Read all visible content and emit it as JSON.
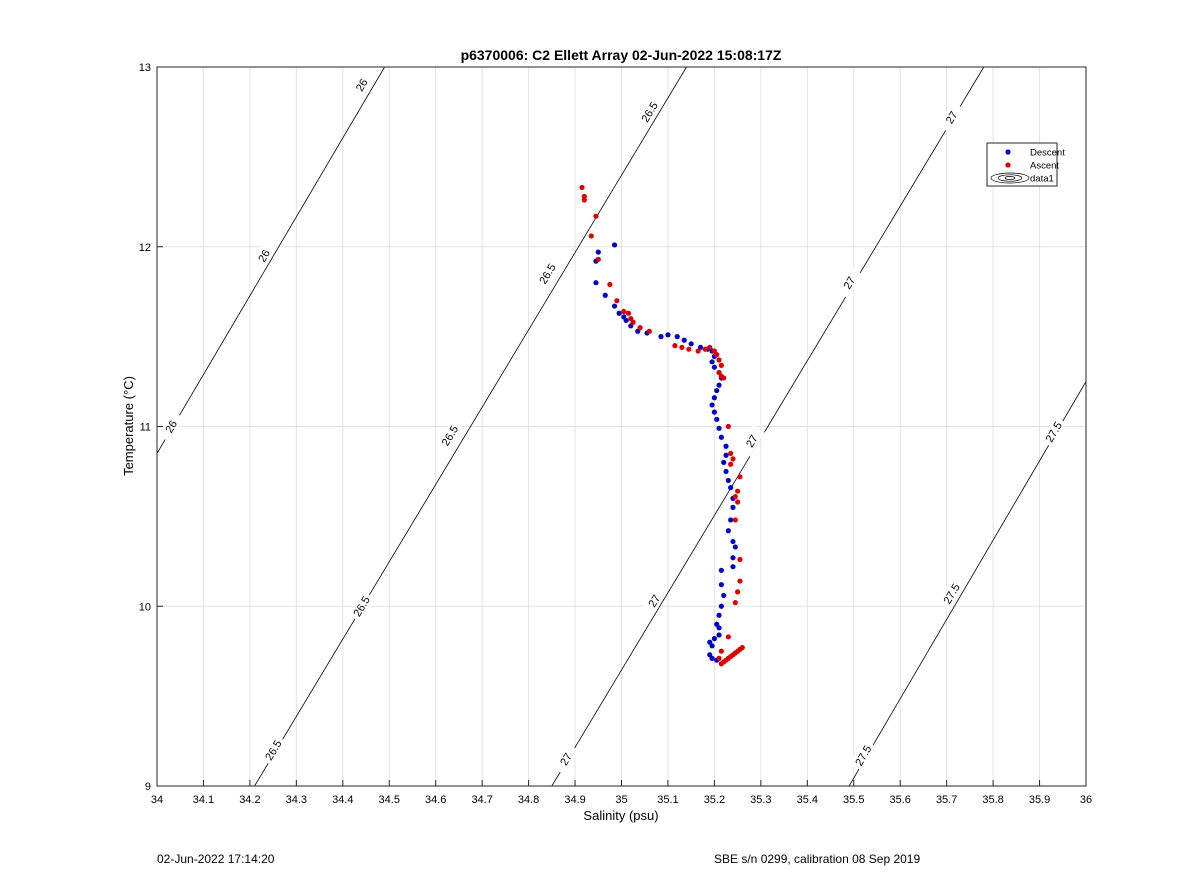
{
  "chart_data": {
    "type": "scatter",
    "title": "p6370006: C2 Ellett Array 02-Jun-2022 15:08:17Z",
    "xlabel": "Salinity (psu)",
    "ylabel": "Temperature (°C)",
    "xlim": [
      34,
      36
    ],
    "ylim": [
      9,
      13
    ],
    "xticks": [
      34,
      34.1,
      34.2,
      34.3,
      34.4,
      34.5,
      34.6,
      34.7,
      34.8,
      34.9,
      35,
      35.1,
      35.2,
      35.3,
      35.4,
      35.5,
      35.6,
      35.7,
      35.8,
      35.9,
      36
    ],
    "xtick_labels": [
      "34",
      "34.1",
      "34.2",
      "34.3",
      "34.4",
      "34.5",
      "34.6",
      "34.7",
      "34.8",
      "34.9",
      "35",
      "35.1",
      "35.2",
      "35.3",
      "35.4",
      "35.5",
      "35.6",
      "35.7",
      "35.8",
      "35.9",
      "36"
    ],
    "yticks": [
      9,
      10,
      11,
      12,
      13
    ],
    "ytick_labels": [
      "9",
      "10",
      "11",
      "12",
      "13"
    ],
    "grid": true,
    "legend_placement": "top-right",
    "legend": [
      {
        "label": "Descent",
        "color": "#0000cc",
        "marker": "dot"
      },
      {
        "label": "Ascent",
        "color": "#dd0000",
        "marker": "dot"
      },
      {
        "label": "data1",
        "color": "#000000",
        "marker": "contour"
      }
    ],
    "series": [
      {
        "name": "Descent",
        "color": "#0000cc",
        "points": [
          [
            34.95,
            11.97
          ],
          [
            34.985,
            12.01
          ],
          [
            34.945,
            11.92
          ],
          [
            34.945,
            11.8
          ],
          [
            34.965,
            11.73
          ],
          [
            34.985,
            11.67
          ],
          [
            34.995,
            11.63
          ],
          [
            35.005,
            11.61
          ],
          [
            35.01,
            11.59
          ],
          [
            35.02,
            11.56
          ],
          [
            35.035,
            11.53
          ],
          [
            35.055,
            11.52
          ],
          [
            35.085,
            11.5
          ],
          [
            35.1,
            11.51
          ],
          [
            35.12,
            11.5
          ],
          [
            35.135,
            11.48
          ],
          [
            35.15,
            11.46
          ],
          [
            35.17,
            11.44
          ],
          [
            35.185,
            11.43
          ],
          [
            35.195,
            11.42
          ],
          [
            35.2,
            11.39
          ],
          [
            35.195,
            11.36
          ],
          [
            35.2,
            11.33
          ],
          [
            35.21,
            11.3
          ],
          [
            35.215,
            11.27
          ],
          [
            35.21,
            11.23
          ],
          [
            35.205,
            11.2
          ],
          [
            35.2,
            11.16
          ],
          [
            35.195,
            11.12
          ],
          [
            35.2,
            11.08
          ],
          [
            35.205,
            11.04
          ],
          [
            35.21,
            10.99
          ],
          [
            35.215,
            10.94
          ],
          [
            35.225,
            10.89
          ],
          [
            35.225,
            10.84
          ],
          [
            35.22,
            10.8
          ],
          [
            35.225,
            10.75
          ],
          [
            35.23,
            10.7
          ],
          [
            35.235,
            10.66
          ],
          [
            35.24,
            10.6
          ],
          [
            35.24,
            10.55
          ],
          [
            35.235,
            10.48
          ],
          [
            35.23,
            10.42
          ],
          [
            35.24,
            10.36
          ],
          [
            35.245,
            10.33
          ],
          [
            35.24,
            10.27
          ],
          [
            35.24,
            10.22
          ],
          [
            35.215,
            10.2
          ],
          [
            35.215,
            10.12
          ],
          [
            35.22,
            10.06
          ],
          [
            35.215,
            10.0
          ],
          [
            35.21,
            9.95
          ],
          [
            35.205,
            9.9
          ],
          [
            35.21,
            9.88
          ],
          [
            35.21,
            9.84
          ],
          [
            35.2,
            9.82
          ],
          [
            35.19,
            9.8
          ],
          [
            35.195,
            9.78
          ],
          [
            35.19,
            9.73
          ],
          [
            35.195,
            9.71
          ],
          [
            35.205,
            9.7
          ]
        ]
      },
      {
        "name": "Ascent",
        "color": "#dd0000",
        "points": [
          [
            34.915,
            12.33
          ],
          [
            34.92,
            12.28
          ],
          [
            34.92,
            12.26
          ],
          [
            34.945,
            12.17
          ],
          [
            34.935,
            12.06
          ],
          [
            34.95,
            11.93
          ],
          [
            34.975,
            11.79
          ],
          [
            34.99,
            11.7
          ],
          [
            35.005,
            11.64
          ],
          [
            35.015,
            11.63
          ],
          [
            35.02,
            11.6
          ],
          [
            35.025,
            11.58
          ],
          [
            35.04,
            11.55
          ],
          [
            35.06,
            11.53
          ],
          [
            35.115,
            11.45
          ],
          [
            35.13,
            11.44
          ],
          [
            35.145,
            11.43
          ],
          [
            35.165,
            11.42
          ],
          [
            35.18,
            11.43
          ],
          [
            35.19,
            11.44
          ],
          [
            35.2,
            11.42
          ],
          [
            35.205,
            11.4
          ],
          [
            35.21,
            11.37
          ],
          [
            35.215,
            11.34
          ],
          [
            35.21,
            11.3
          ],
          [
            35.215,
            11.28
          ],
          [
            35.22,
            11.27
          ],
          [
            35.23,
            11.0
          ],
          [
            35.235,
            10.85
          ],
          [
            35.24,
            10.82
          ],
          [
            35.235,
            10.79
          ],
          [
            35.255,
            10.72
          ],
          [
            35.25,
            10.64
          ],
          [
            35.245,
            10.61
          ],
          [
            35.25,
            10.58
          ],
          [
            35.245,
            10.48
          ],
          [
            35.255,
            10.26
          ],
          [
            35.255,
            10.14
          ],
          [
            35.25,
            10.08
          ],
          [
            35.245,
            10.02
          ],
          [
            35.23,
            9.83
          ],
          [
            35.215,
            9.75
          ],
          [
            35.21,
            9.71
          ],
          [
            35.215,
            9.68
          ],
          [
            35.22,
            9.69
          ],
          [
            35.225,
            9.7
          ],
          [
            35.23,
            9.71
          ],
          [
            35.235,
            9.72
          ],
          [
            35.24,
            9.73
          ],
          [
            35.245,
            9.74
          ],
          [
            35.25,
            9.75
          ],
          [
            35.255,
            9.76
          ],
          [
            35.26,
            9.77
          ]
        ]
      }
    ],
    "contours": [
      {
        "label": "26",
        "points": [
          [
            34.0,
            10.85
          ],
          [
            34.49,
            13.0
          ]
        ],
        "label_positions": [
          [
            34.03,
            11.0
          ],
          [
            34.23,
            11.95
          ],
          [
            34.44,
            12.9
          ]
        ]
      },
      {
        "label": "26.5",
        "points": [
          [
            34.21,
            9.0
          ],
          [
            35.14,
            13.0
          ]
        ],
        "label_positions": [
          [
            34.25,
            9.2
          ],
          [
            34.44,
            10.0
          ],
          [
            34.63,
            10.95
          ],
          [
            34.84,
            11.85
          ],
          [
            35.06,
            12.75
          ]
        ]
      },
      {
        "label": "27",
        "points": [
          [
            34.85,
            9.0
          ],
          [
            35.78,
            13.0
          ]
        ],
        "label_positions": [
          [
            34.88,
            9.15
          ],
          [
            35.07,
            10.03
          ],
          [
            35.28,
            10.92
          ],
          [
            35.49,
            11.8
          ],
          [
            35.71,
            12.72
          ]
        ]
      },
      {
        "label": "27.5",
        "points": [
          [
            35.49,
            9.0
          ],
          [
            36.0,
            11.25
          ]
        ],
        "label_positions": [
          [
            35.52,
            9.17
          ],
          [
            35.71,
            10.07
          ],
          [
            35.93,
            10.97
          ]
        ]
      }
    ]
  },
  "footer": {
    "left": "02-Jun-2022 17:14:20",
    "right": "SBE s/n 0299, calibration 08 Sep 2019"
  }
}
